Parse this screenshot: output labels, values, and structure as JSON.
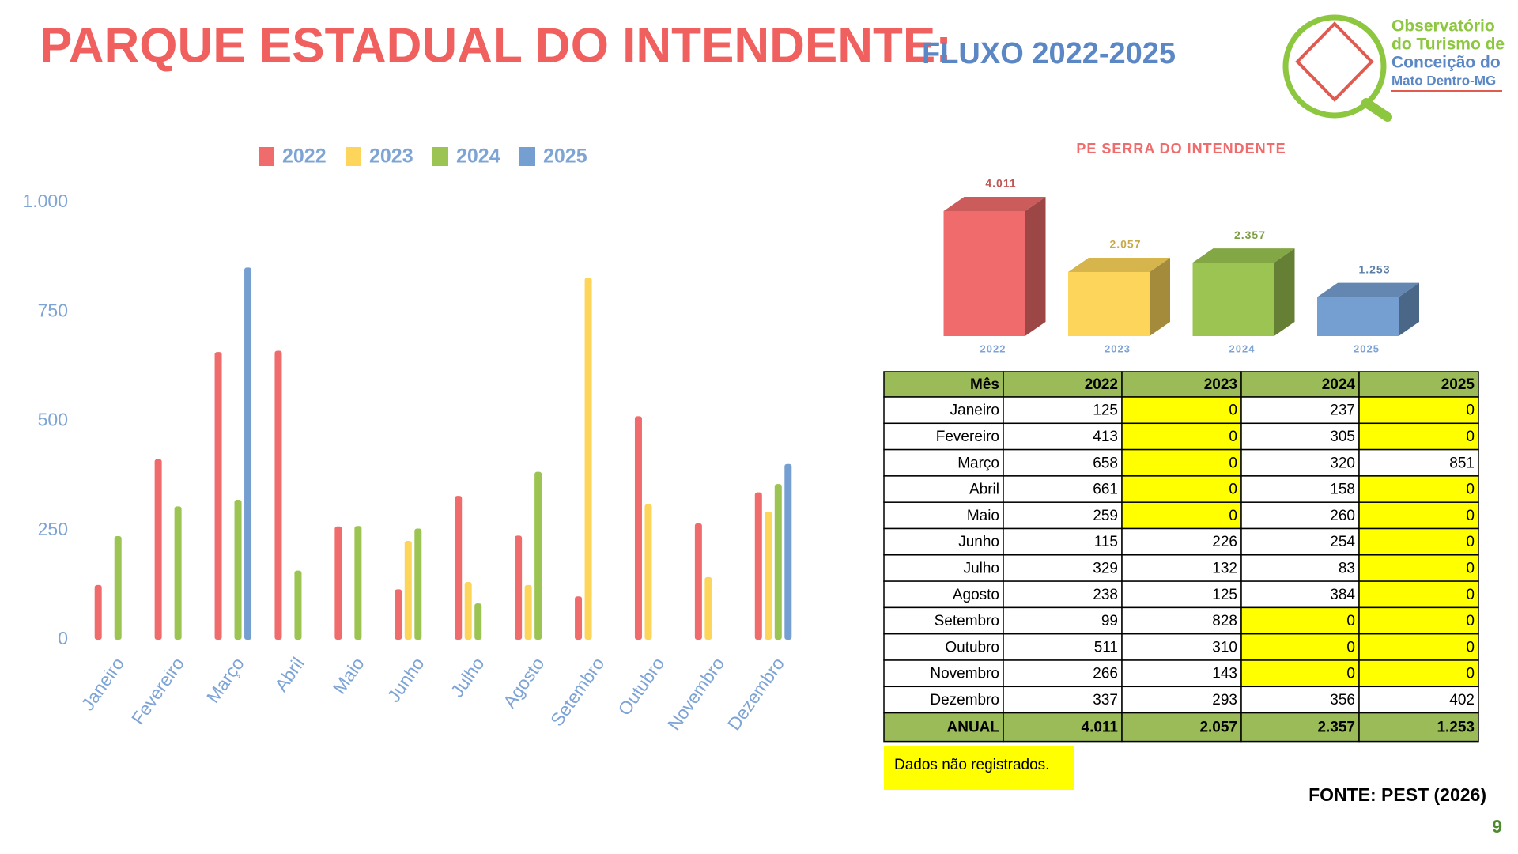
{
  "header": {
    "title": "PARQUE ESTADUAL DO INTENDENTE:",
    "subtitle": "FLUXO 2022-2025"
  },
  "logo": {
    "lines": [
      "Observatório",
      "do Turismo de",
      "Conceição do",
      "Mato Dentro-MG"
    ]
  },
  "chart_data": [
    {
      "type": "bar",
      "legend": "top",
      "categories": [
        "Janeiro",
        "Fevereiro",
        "Março",
        "Abril",
        "Maio",
        "Junho",
        "Julho",
        "Agosto",
        "Setembro",
        "Outubro",
        "Novembro",
        "Dezembro"
      ],
      "series": [
        {
          "name": "2022",
          "color": "#f06b6b",
          "values": [
            125,
            413,
            658,
            661,
            259,
            115,
            329,
            238,
            99,
            511,
            266,
            337
          ]
        },
        {
          "name": "2023",
          "color": "#fcd55a",
          "values": [
            0,
            0,
            0,
            0,
            0,
            226,
            132,
            125,
            828,
            310,
            143,
            293
          ]
        },
        {
          "name": "2024",
          "color": "#9bc452",
          "values": [
            237,
            305,
            320,
            158,
            260,
            254,
            83,
            384,
            0,
            0,
            0,
            356
          ]
        },
        {
          "name": "2025",
          "color": "#749fd0",
          "values": [
            0,
            0,
            851,
            0,
            0,
            0,
            0,
            0,
            0,
            0,
            0,
            402
          ]
        }
      ],
      "ylim": [
        0,
        1000
      ],
      "yticks": [
        0,
        250,
        500,
        750,
        {
          "value": 1000,
          "label": "1.000"
        }
      ],
      "grid": false
    },
    {
      "type": "bar3d",
      "title": "PE SERRA DO INTENDENTE",
      "categories": [
        "2022",
        "2023",
        "2024",
        "2025"
      ],
      "values": [
        4011,
        2057,
        2357,
        1253
      ],
      "value_labels": [
        "4.011",
        "2.057",
        "2.357",
        "1.253"
      ],
      "colors": [
        "#f06b6b",
        "#fcd55a",
        "#9bc452",
        "#749fd0"
      ]
    }
  ],
  "table": {
    "header": [
      "Mês",
      "2022",
      "2023",
      "2024",
      "2025"
    ],
    "rows": [
      [
        "Janeiro",
        "125",
        "0",
        "237",
        "0"
      ],
      [
        "Fevereiro",
        "413",
        "0",
        "305",
        "0"
      ],
      [
        "Março",
        "658",
        "0",
        "320",
        "851"
      ],
      [
        "Abril",
        "661",
        "0",
        "158",
        "0"
      ],
      [
        "Maio",
        "259",
        "0",
        "260",
        "0"
      ],
      [
        "Junho",
        "115",
        "226",
        "254",
        "0"
      ],
      [
        "Julho",
        "329",
        "132",
        "83",
        "0"
      ],
      [
        "Agosto",
        "238",
        "125",
        "384",
        "0"
      ],
      [
        "Setembro",
        "99",
        "828",
        "0",
        "0"
      ],
      [
        "Outubro",
        "511",
        "310",
        "0",
        "0"
      ],
      [
        "Novembro",
        "266",
        "143",
        "0",
        "0"
      ],
      [
        "Dezembro",
        "337",
        "293",
        "356",
        "402"
      ]
    ],
    "total": [
      "ANUAL",
      "4.011",
      "2.057",
      "2.357",
      "1.253"
    ],
    "highlight_color": "#ffff00"
  },
  "note": "Dados não registrados.",
  "source": "FONTE: PEST (2026)",
  "page": "9"
}
